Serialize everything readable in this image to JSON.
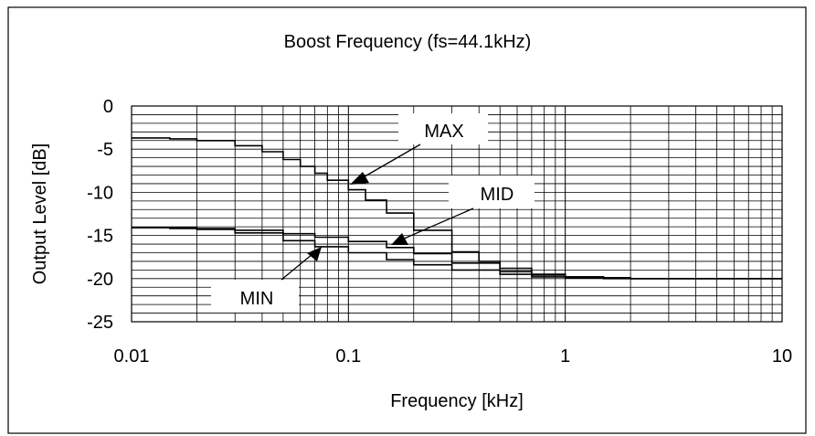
{
  "chart_data": {
    "type": "line",
    "title": "Boost Frequency (fs=44.1kHz)",
    "xlabel": "Frequency [kHz]",
    "ylabel": "Output Level [dB]",
    "xscale": "log",
    "xlim": [
      0.01,
      10
    ],
    "ylim": [
      -25,
      0
    ],
    "grid": true,
    "x_ticks": [
      "0.01",
      "0.1",
      "1",
      "10"
    ],
    "y_ticks": [
      "0",
      "-5",
      "-10",
      "-15",
      "-20",
      "-25"
    ],
    "series": [
      {
        "name": "MAX",
        "x": [
          0.01,
          0.015,
          0.02,
          0.03,
          0.04,
          0.05,
          0.06,
          0.07,
          0.08,
          0.1,
          0.12,
          0.15,
          0.2,
          0.3,
          0.4,
          0.5,
          0.7,
          1,
          1.5,
          2,
          3,
          5,
          10
        ],
        "y": [
          -3.7,
          -3.8,
          -4.0,
          -4.6,
          -5.3,
          -6.2,
          -7.0,
          -7.8,
          -8.6,
          -9.7,
          -10.9,
          -12.4,
          -14.4,
          -16.9,
          -18.0,
          -18.8,
          -19.5,
          -19.8,
          -19.9,
          -20.0,
          -20.0,
          -20.0,
          -20.0
        ]
      },
      {
        "name": "MID",
        "x": [
          0.01,
          0.02,
          0.03,
          0.05,
          0.07,
          0.1,
          0.15,
          0.2,
          0.3,
          0.5,
          0.7,
          1,
          1.5,
          2,
          3,
          5,
          10
        ],
        "y": [
          -14.1,
          -14.2,
          -14.4,
          -14.8,
          -15.2,
          -15.7,
          -16.4,
          -17.1,
          -18.2,
          -19.2,
          -19.6,
          -19.8,
          -19.9,
          -20.0,
          -20.0,
          -20.0,
          -20.0
        ]
      },
      {
        "name": "MIN",
        "x": [
          0.01,
          0.015,
          0.02,
          0.03,
          0.05,
          0.07,
          0.1,
          0.15,
          0.2,
          0.3,
          0.5,
          0.7,
          1,
          1.5,
          2,
          3,
          5,
          10
        ],
        "y": [
          -14.1,
          -14.2,
          -14.3,
          -14.7,
          -15.6,
          -16.3,
          -17.0,
          -17.8,
          -18.4,
          -19.0,
          -19.5,
          -19.8,
          -19.9,
          -20.0,
          -20.0,
          -20.0,
          -20.0,
          -20.0
        ]
      }
    ],
    "annotations": [
      "MAX",
      "MID",
      "MIN"
    ]
  }
}
